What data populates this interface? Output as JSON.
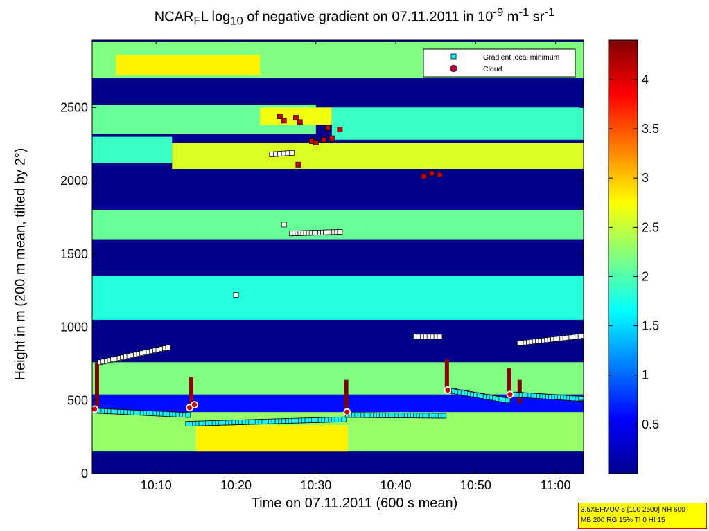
{
  "chart_data": {
    "type": "heatmap",
    "title": {
      "prefix": "NCAR",
      "prefix_sub": "F",
      "after_prefix": "L log",
      "log_sub": "10",
      "middle": " of negative gradient on 07.11.2011 in 10",
      "exp1": "-9",
      "unit_m": " m",
      "exp2": "-1",
      "unit_sr": " sr",
      "exp3": "-1"
    },
    "xlabel": "Time on 07.11.2011 (600 s mean)",
    "ylabel": "Height in m (200 m mean, tilted by 2°)",
    "x_range_minutes": [
      602,
      663.5
    ],
    "x_ticks": [
      {
        "label": "10:10",
        "minute": 610
      },
      {
        "label": "10:20",
        "minute": 620
      },
      {
        "label": "10:30",
        "minute": 630
      },
      {
        "label": "10:40",
        "minute": 640
      },
      {
        "label": "10:50",
        "minute": 650
      },
      {
        "label": "11:00",
        "minute": 660
      }
    ],
    "y_range": [
      0,
      2960
    ],
    "y_ticks": [
      0,
      500,
      1000,
      1500,
      2000,
      2500
    ],
    "colorbar": {
      "range": [
        0,
        4.4
      ],
      "ticks": [
        "0.5",
        "1",
        "1.5",
        "2",
        "2.5",
        "3",
        "3.5",
        "4"
      ],
      "tick_values": [
        0.5,
        1,
        1.5,
        2,
        2.5,
        3,
        3.5,
        4
      ],
      "colormap": "jet"
    },
    "legend": {
      "position": "top-right",
      "entries": [
        {
          "label": "Gradient local minimum",
          "marker": "square",
          "color": "#00ffff"
        },
        {
          "label": "Cloud",
          "marker": "circle",
          "color": "#cc0000"
        }
      ]
    },
    "layers": [
      {
        "t0": 602,
        "t1": 663.5,
        "h0": 2700,
        "h1": 2950,
        "v": 2.2
      },
      {
        "t0": 605,
        "t1": 623,
        "h0": 2720,
        "h1": 2860,
        "v": 2.8
      },
      {
        "t0": 602,
        "t1": 663.5,
        "h0": 2550,
        "h1": 2700,
        "v": 0.05
      },
      {
        "t0": 602,
        "t1": 630,
        "h0": 2320,
        "h1": 2520,
        "v": 2.1
      },
      {
        "t0": 623,
        "t1": 632,
        "h0": 2380,
        "h1": 2500,
        "v": 2.7
      },
      {
        "t0": 632,
        "t1": 663.5,
        "h0": 2280,
        "h1": 2500,
        "v": 1.9
      },
      {
        "t0": 602,
        "t1": 612,
        "h0": 2120,
        "h1": 2300,
        "v": 1.9
      },
      {
        "t0": 612,
        "t1": 663.5,
        "h0": 2080,
        "h1": 2260,
        "v": 2.6
      },
      {
        "t0": 602,
        "t1": 663.5,
        "h0": 1830,
        "h1": 2080,
        "v": 0.05
      },
      {
        "t0": 602,
        "t1": 663.5,
        "h0": 1600,
        "h1": 1800,
        "v": 2.1
      },
      {
        "t0": 602,
        "t1": 663.5,
        "h0": 1380,
        "h1": 1600,
        "v": 0.05
      },
      {
        "t0": 602,
        "t1": 663.5,
        "h0": 1050,
        "h1": 1350,
        "v": 1.8
      },
      {
        "t0": 602,
        "t1": 663.5,
        "h0": 760,
        "h1": 1050,
        "v": 0.05
      },
      {
        "t0": 602,
        "t1": 663.5,
        "h0": 540,
        "h1": 760,
        "v": 2.2
      },
      {
        "t0": 602,
        "t1": 663.5,
        "h0": 420,
        "h1": 540,
        "v": 0.6
      },
      {
        "t0": 602,
        "t1": 663.5,
        "h0": 150,
        "h1": 420,
        "v": 2.3
      },
      {
        "t0": 615,
        "t1": 634,
        "h0": 150,
        "h1": 330,
        "v": 2.8
      },
      {
        "t0": 602,
        "t1": 663.5,
        "h0": 0,
        "h1": 150,
        "v": 0.05
      }
    ],
    "spikes": [
      {
        "minute": 602.6,
        "h0": 420,
        "h1": 760,
        "v": 4.4
      },
      {
        "minute": 614.4,
        "h0": 440,
        "h1": 660,
        "v": 4.3
      },
      {
        "minute": 633.8,
        "h0": 420,
        "h1": 640,
        "v": 4.4
      },
      {
        "minute": 646.4,
        "h0": 560,
        "h1": 780,
        "v": 4.3
      },
      {
        "minute": 654.2,
        "h0": 500,
        "h1": 720,
        "v": 4.3
      },
      {
        "minute": 655.5,
        "h0": 480,
        "h1": 640,
        "v": 4.4
      }
    ],
    "gradient_minimum": [
      {
        "t0": 603,
        "t1": 611.5,
        "h0": 760,
        "h1": 860,
        "n": 22
      },
      {
        "t0": 602.2,
        "t1": 614,
        "h0": 430,
        "h1": 400,
        "n": 30
      },
      {
        "t0": 614,
        "t1": 633.5,
        "h0": 340,
        "h1": 370,
        "n": 48
      },
      {
        "t0": 634,
        "t1": 646,
        "h0": 400,
        "h1": 395,
        "n": 32
      },
      {
        "t0": 646.5,
        "t1": 654,
        "h0": 570,
        "h1": 500,
        "n": 20
      },
      {
        "t0": 655,
        "t1": 663.5,
        "h0": 540,
        "h1": 510,
        "n": 24
      },
      {
        "t0": 655.5,
        "t1": 663.5,
        "h0": 890,
        "h1": 940,
        "n": 22
      },
      {
        "t0": 642.5,
        "t1": 645.5,
        "h0": 935,
        "h1": 935,
        "n": 8
      },
      {
        "t0": 627,
        "t1": 633,
        "h0": 1640,
        "h1": 1650,
        "n": 18
      },
      {
        "t0": 624.5,
        "t1": 627,
        "h0": 2180,
        "h1": 2190,
        "n": 6
      },
      {
        "t0": 620,
        "t1": 620,
        "h0": 1220,
        "h1": 1220,
        "n": 1
      },
      {
        "t0": 626,
        "t1": 626,
        "h0": 1700,
        "h1": 1700,
        "n": 1
      }
    ],
    "high_gradient_markers": [
      {
        "minute": 625.5,
        "height": 2440
      },
      {
        "minute": 626,
        "height": 2410
      },
      {
        "minute": 627.5,
        "height": 2430
      },
      {
        "minute": 628,
        "height": 2400
      },
      {
        "minute": 629.5,
        "height": 2270
      },
      {
        "minute": 630,
        "height": 2260
      },
      {
        "minute": 631,
        "height": 2280
      },
      {
        "minute": 632,
        "height": 2290
      },
      {
        "minute": 627.8,
        "height": 2110
      },
      {
        "minute": 643.5,
        "height": 2030
      },
      {
        "minute": 644.5,
        "height": 2050
      },
      {
        "minute": 645.5,
        "height": 2040
      },
      {
        "minute": 631.5,
        "height": 2360
      },
      {
        "minute": 633,
        "height": 2350
      }
    ],
    "cloud": [
      {
        "minute": 602.3,
        "height": 440
      },
      {
        "minute": 614.2,
        "height": 450
      },
      {
        "minute": 614.8,
        "height": 470
      },
      {
        "minute": 633.9,
        "height": 420
      },
      {
        "minute": 646.5,
        "height": 570
      },
      {
        "minute": 654.3,
        "height": 540
      }
    ]
  },
  "info_box": {
    "line1": "3.5XEFMUV 5 [100 2500] NH 600",
    "line2": "MB 200 RG 15% TI 0 HI 15"
  }
}
